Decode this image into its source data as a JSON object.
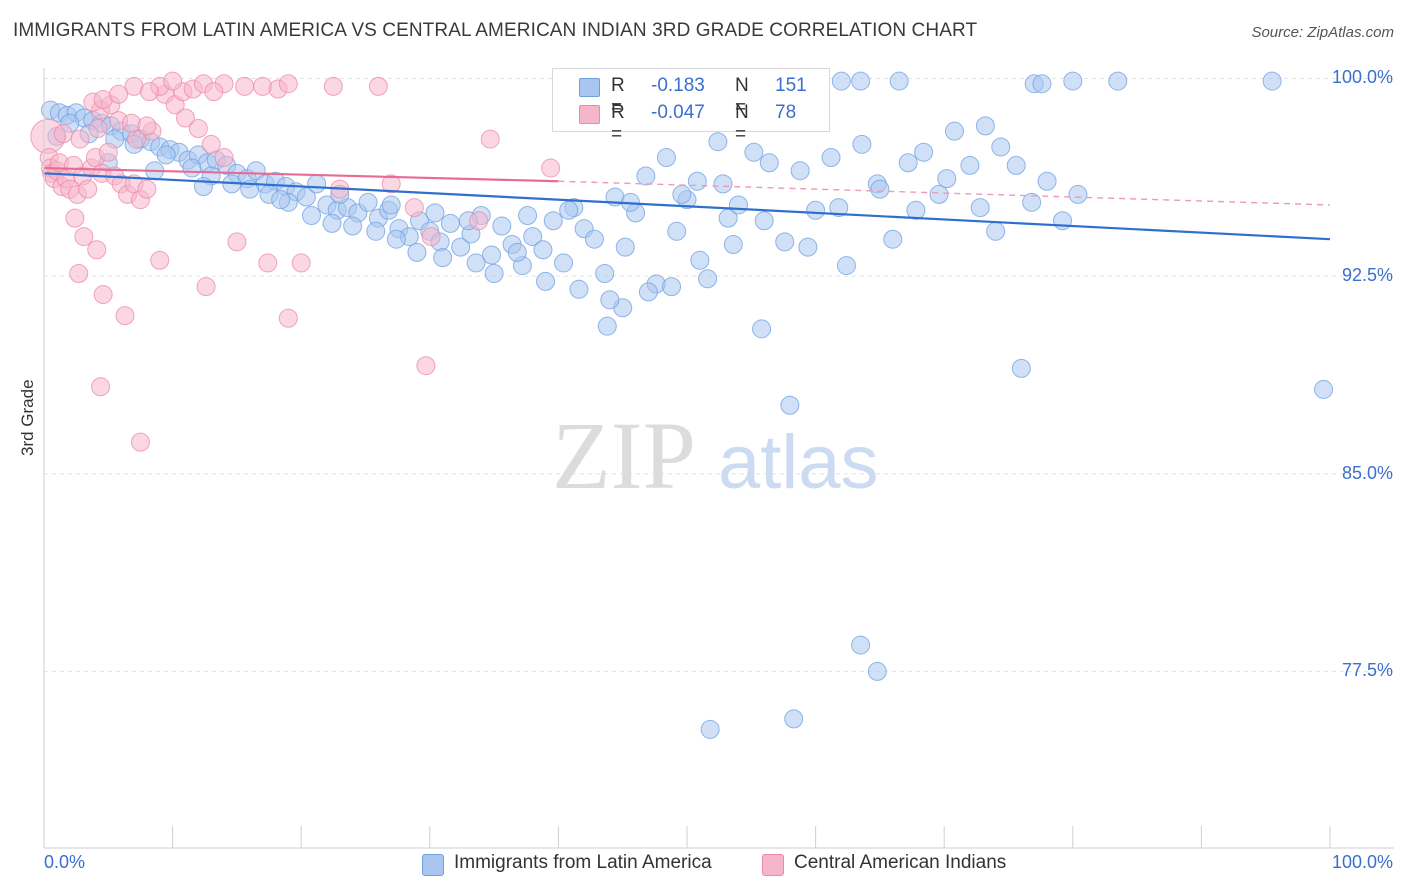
{
  "header": {
    "title": "IMMIGRANTS FROM LATIN AMERICA VS CENTRAL AMERICAN INDIAN 3RD GRADE CORRELATION CHART",
    "source": "Source: ZipAtlas.com"
  },
  "legend": {
    "rows": [
      {
        "r_label": "R =",
        "r_value": "-0.183",
        "n_label": "N =",
        "n_value": "151",
        "color": "#a9c6f0"
      },
      {
        "r_label": "R =",
        "r_value": "-0.047",
        "n_label": "N =",
        "n_value": "78",
        "color": "#f6b6ca"
      }
    ]
  },
  "watermark": {
    "zip": "ZIP",
    "atlas": "atlas"
  },
  "chart_data": {
    "type": "scatter",
    "title": "IMMIGRANTS FROM LATIN AMERICA VS CENTRAL AMERICAN INDIAN 3RD GRADE CORRELATION CHART",
    "xlabel": "",
    "ylabel": "3rd Grade",
    "xlim": [
      0,
      100
    ],
    "ylim": [
      70.8,
      100.7
    ],
    "x_tick_labels": [
      "0.0%",
      "100.0%"
    ],
    "y_ticks": [
      100.0,
      92.5,
      85.0,
      77.5
    ],
    "y_tick_labels": [
      "100.0%",
      "92.5%",
      "85.0%",
      "77.5%"
    ],
    "grid": true,
    "legend_position": "bottom",
    "series": [
      {
        "name": "Immigrants from Latin America",
        "color": "#6f9fe3",
        "fill": "#a9c6f0",
        "trend": {
          "x0": 0,
          "y0": 96.4,
          "x1": 100,
          "y1": 93.9
        },
        "points": [
          [
            0.5,
            98.8
          ],
          [
            1.2,
            98.7
          ],
          [
            1.8,
            98.6
          ],
          [
            2.5,
            98.7
          ],
          [
            3.1,
            98.5
          ],
          [
            3.8,
            98.4
          ],
          [
            4.5,
            98.3
          ],
          [
            5.2,
            98.2
          ],
          [
            6.0,
            98.0
          ],
          [
            6.8,
            97.9
          ],
          [
            7.5,
            97.7
          ],
          [
            8.3,
            97.6
          ],
          [
            9.0,
            97.4
          ],
          [
            9.8,
            97.3
          ],
          [
            10.5,
            97.2
          ],
          [
            11.2,
            96.9
          ],
          [
            12.0,
            97.1
          ],
          [
            12.7,
            96.8
          ],
          [
            13.4,
            96.9
          ],
          [
            14.2,
            96.7
          ],
          [
            15.0,
            96.4
          ],
          [
            15.8,
            96.2
          ],
          [
            16.5,
            96.5
          ],
          [
            17.2,
            96.0
          ],
          [
            18.0,
            96.1
          ],
          [
            18.8,
            95.9
          ],
          [
            19.6,
            95.7
          ],
          [
            20.4,
            95.5
          ],
          [
            21.2,
            96.0
          ],
          [
            22.0,
            95.2
          ],
          [
            22.8,
            95.0
          ],
          [
            23.6,
            95.1
          ],
          [
            24.4,
            94.9
          ],
          [
            25.2,
            95.3
          ],
          [
            26.0,
            94.7
          ],
          [
            26.8,
            95.0
          ],
          [
            27.6,
            94.3
          ],
          [
            28.4,
            94.0
          ],
          [
            29.2,
            94.6
          ],
          [
            30.0,
            94.2
          ],
          [
            30.8,
            93.8
          ],
          [
            31.6,
            94.5
          ],
          [
            32.4,
            93.6
          ],
          [
            33.2,
            94.1
          ],
          [
            34.0,
            94.8
          ],
          [
            34.8,
            93.3
          ],
          [
            35.6,
            94.4
          ],
          [
            36.4,
            93.7
          ],
          [
            37.2,
            92.9
          ],
          [
            38.0,
            94.0
          ],
          [
            38.8,
            93.5
          ],
          [
            39.6,
            94.6
          ],
          [
            40.4,
            93.0
          ],
          [
            41.2,
            95.1
          ],
          [
            42.0,
            94.3
          ],
          [
            42.8,
            93.9
          ],
          [
            43.6,
            92.6
          ],
          [
            44.4,
            95.5
          ],
          [
            45.2,
            93.6
          ],
          [
            46.0,
            94.9
          ],
          [
            46.8,
            96.3
          ],
          [
            47.6,
            92.2
          ],
          [
            48.4,
            97.0
          ],
          [
            49.2,
            94.2
          ],
          [
            50.0,
            95.4
          ],
          [
            50.8,
            96.1
          ],
          [
            51.6,
            92.4
          ],
          [
            52.4,
            97.6
          ],
          [
            53.2,
            94.7
          ],
          [
            54.0,
            95.2
          ],
          [
            55.2,
            97.2
          ],
          [
            56.4,
            96.8
          ],
          [
            57.6,
            93.8
          ],
          [
            58.8,
            96.5
          ],
          [
            60.0,
            95.0
          ],
          [
            61.2,
            97.0
          ],
          [
            62.4,
            92.9
          ],
          [
            63.6,
            97.5
          ],
          [
            64.8,
            96.0
          ],
          [
            66.0,
            93.9
          ],
          [
            67.2,
            96.8
          ],
          [
            68.4,
            97.2
          ],
          [
            69.6,
            95.6
          ],
          [
            70.8,
            98.0
          ],
          [
            72.0,
            96.7
          ],
          [
            73.2,
            98.2
          ],
          [
            74.4,
            97.4
          ],
          [
            75.6,
            96.7
          ],
          [
            76.8,
            95.3
          ],
          [
            78.0,
            96.1
          ],
          [
            79.2,
            94.6
          ],
          [
            80.4,
            95.6
          ],
          [
            35.0,
            92.6
          ],
          [
            43.8,
            90.6
          ],
          [
            45.0,
            91.3
          ],
          [
            55.8,
            90.5
          ],
          [
            58.0,
            87.6
          ],
          [
            76.0,
            89.0
          ],
          [
            99.5,
            88.2
          ],
          [
            63.5,
            78.5
          ],
          [
            64.8,
            77.5
          ],
          [
            58.3,
            75.7
          ],
          [
            51.8,
            75.3
          ],
          [
            57.0,
            99.8
          ],
          [
            62.0,
            99.9
          ],
          [
            63.5,
            99.9
          ],
          [
            66.5,
            99.9
          ],
          [
            77.0,
            99.8
          ],
          [
            77.6,
            99.8
          ],
          [
            80.0,
            99.9
          ],
          [
            83.5,
            99.9
          ],
          [
            95.5,
            99.9
          ],
          [
            1.0,
            97.8
          ],
          [
            2.0,
            98.3
          ],
          [
            3.5,
            97.9
          ],
          [
            5.5,
            97.7
          ],
          [
            7.0,
            97.5
          ],
          [
            9.5,
            97.1
          ],
          [
            11.5,
            96.6
          ],
          [
            13.0,
            96.3
          ],
          [
            14.6,
            96.0
          ],
          [
            16.0,
            95.8
          ],
          [
            17.5,
            95.6
          ],
          [
            19.0,
            95.3
          ],
          [
            20.8,
            94.8
          ],
          [
            22.4,
            94.5
          ],
          [
            24.0,
            94.4
          ],
          [
            25.8,
            94.2
          ],
          [
            27.4,
            93.9
          ],
          [
            29.0,
            93.4
          ],
          [
            31.0,
            93.2
          ],
          [
            33.6,
            93.0
          ],
          [
            36.8,
            93.4
          ],
          [
            39.0,
            92.3
          ],
          [
            41.6,
            92.0
          ],
          [
            44.0,
            91.6
          ],
          [
            47.0,
            91.9
          ],
          [
            48.8,
            92.1
          ],
          [
            51.0,
            93.1
          ],
          [
            53.6,
            93.7
          ],
          [
            56.0,
            94.6
          ],
          [
            59.4,
            93.6
          ],
          [
            61.8,
            95.1
          ],
          [
            65.0,
            95.8
          ],
          [
            67.8,
            95.0
          ],
          [
            70.2,
            96.2
          ],
          [
            72.8,
            95.1
          ],
          [
            74.0,
            94.2
          ],
          [
            5.0,
            96.8
          ],
          [
            8.6,
            96.5
          ],
          [
            12.4,
            95.9
          ],
          [
            18.4,
            95.4
          ],
          [
            23.0,
            95.6
          ],
          [
            27.0,
            95.2
          ],
          [
            30.4,
            94.9
          ],
          [
            33.0,
            94.6
          ],
          [
            37.6,
            94.8
          ],
          [
            40.8,
            95.0
          ],
          [
            45.6,
            95.3
          ],
          [
            49.6,
            95.6
          ],
          [
            52.8,
            96.0
          ]
        ]
      },
      {
        "name": "Central American Indians",
        "color": "#ee88a8",
        "fill": "#f6b6ca",
        "trend": {
          "x0": 0,
          "y0": 96.6,
          "x1": 40,
          "y1": 96.1
        },
        "trend_dashed": {
          "x0": 40,
          "y0": 96.1,
          "x1": 100,
          "y1": 95.2
        },
        "points": [
          [
            0.3,
            97.8
          ],
          [
            0.4,
            97.0
          ],
          [
            0.5,
            96.6
          ],
          [
            0.6,
            96.4
          ],
          [
            0.8,
            96.2
          ],
          [
            1.0,
            96.5
          ],
          [
            1.2,
            96.8
          ],
          [
            1.4,
            95.9
          ],
          [
            1.7,
            96.2
          ],
          [
            2.0,
            95.8
          ],
          [
            2.3,
            96.7
          ],
          [
            2.6,
            95.6
          ],
          [
            3.0,
            96.3
          ],
          [
            3.4,
            95.8
          ],
          [
            3.7,
            96.6
          ],
          [
            4.0,
            97.0
          ],
          [
            4.5,
            96.4
          ],
          [
            5.0,
            97.2
          ],
          [
            5.5,
            96.3
          ],
          [
            6.0,
            96.0
          ],
          [
            6.5,
            95.6
          ],
          [
            7.0,
            96.0
          ],
          [
            7.5,
            95.4
          ],
          [
            8.0,
            95.8
          ],
          [
            1.5,
            97.9
          ],
          [
            2.8,
            97.7
          ],
          [
            4.2,
            98.1
          ],
          [
            5.8,
            98.4
          ],
          [
            7.2,
            97.7
          ],
          [
            8.4,
            98.0
          ],
          [
            9.4,
            99.4
          ],
          [
            10.2,
            99.0
          ],
          [
            11.0,
            98.5
          ],
          [
            12.0,
            98.1
          ],
          [
            13.0,
            97.5
          ],
          [
            14.0,
            97.0
          ],
          [
            4.4,
            98.8
          ],
          [
            5.2,
            99.0
          ],
          [
            6.8,
            98.3
          ],
          [
            8.0,
            98.2
          ],
          [
            3.8,
            99.1
          ],
          [
            7.0,
            99.7
          ],
          [
            9.0,
            99.7
          ],
          [
            10.8,
            99.5
          ],
          [
            11.6,
            99.6
          ],
          [
            12.4,
            99.8
          ],
          [
            14.0,
            99.8
          ],
          [
            15.6,
            99.7
          ],
          [
            17.0,
            99.7
          ],
          [
            18.2,
            99.6
          ],
          [
            19.0,
            99.8
          ],
          [
            22.5,
            99.7
          ],
          [
            26.0,
            99.7
          ],
          [
            4.6,
            99.2
          ],
          [
            5.8,
            99.4
          ],
          [
            8.2,
            99.5
          ],
          [
            10.0,
            99.9
          ],
          [
            13.2,
            99.5
          ],
          [
            2.4,
            94.7
          ],
          [
            3.1,
            94.0
          ],
          [
            4.1,
            93.5
          ],
          [
            2.7,
            92.6
          ],
          [
            4.6,
            91.8
          ],
          [
            9.0,
            93.1
          ],
          [
            12.6,
            92.1
          ],
          [
            15.0,
            93.8
          ],
          [
            17.4,
            93.0
          ],
          [
            20.0,
            93.0
          ],
          [
            23.0,
            95.8
          ],
          [
            27.0,
            96.0
          ],
          [
            28.8,
            95.1
          ],
          [
            30.1,
            94.0
          ],
          [
            33.8,
            94.6
          ],
          [
            39.4,
            96.6
          ],
          [
            34.7,
            97.7
          ],
          [
            6.3,
            91.0
          ],
          [
            19.0,
            90.9
          ],
          [
            29.7,
            89.1
          ],
          [
            4.4,
            88.3
          ],
          [
            7.5,
            86.2
          ]
        ]
      }
    ]
  }
}
